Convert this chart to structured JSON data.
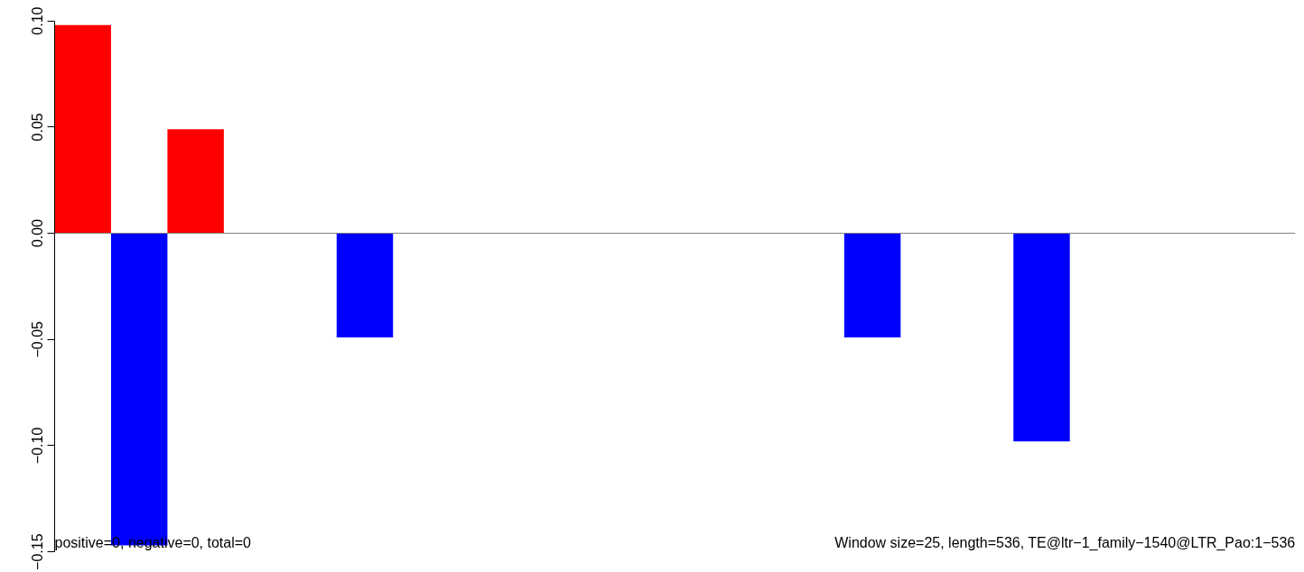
{
  "chart_data": {
    "type": "bar",
    "categories": [
      null,
      null,
      null,
      null,
      null,
      null,
      null,
      null,
      null,
      null,
      null,
      null,
      null,
      null,
      null,
      null,
      null,
      null,
      null,
      null,
      null,
      null
    ],
    "values": [
      0.098,
      -0.147,
      0.049,
      0,
      0,
      -0.049,
      0,
      0,
      0,
      0,
      0,
      0,
      0,
      0,
      -0.049,
      0,
      0,
      -0.098,
      0,
      0,
      0,
      0
    ],
    "colors": [
      "#ff0000",
      "#0000ff",
      "#ff0000",
      "#0000ff",
      "#0000ff",
      "#0000ff",
      "#0000ff",
      "#0000ff",
      "#0000ff",
      "#0000ff",
      "#0000ff",
      "#0000ff",
      "#0000ff",
      "#0000ff",
      "#0000ff",
      "#0000ff",
      "#0000ff",
      "#0000ff",
      "#0000ff",
      "#0000ff",
      "#0000ff",
      "#0000ff"
    ],
    "ylim": [
      -0.15,
      0.1
    ],
    "yticks": [
      {
        "value": -0.15,
        "label": "−0.15"
      },
      {
        "value": -0.1,
        "label": "−0.10"
      },
      {
        "value": -0.05,
        "label": "−0.05"
      },
      {
        "value": 0,
        "label": "0.00"
      },
      {
        "value": 0.05,
        "label": "0.05"
      },
      {
        "value": 0.1,
        "label": "0.10"
      }
    ],
    "ref_lines": [
      {
        "axis": "y",
        "value": 0,
        "label": null,
        "color": "#808080"
      }
    ],
    "annotations": [
      "positive=0, negative=0, total=0",
      "Window size=25, length=536, TE@ltr−1_family−1540@LTR_Pao:1−536"
    ],
    "grid": false
  }
}
